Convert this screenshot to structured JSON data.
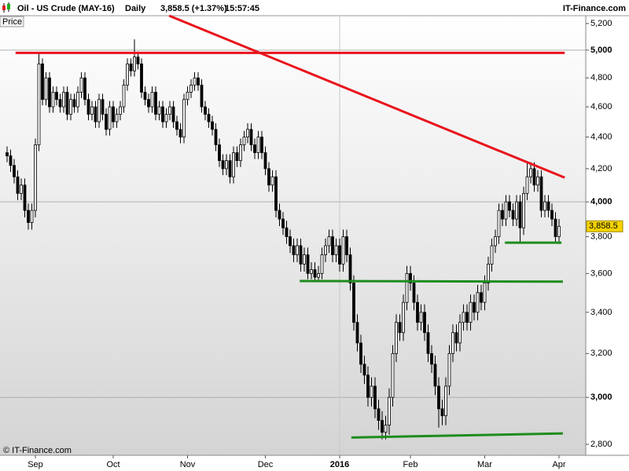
{
  "chart_data": {
    "type": "candlestick",
    "instrument": "Oil - US Crude (MAY-16)",
    "period": "Daily",
    "quote": "3,858.5 (+1.37%)",
    "time": "15:57:45",
    "source": "IT-Finance.com",
    "panel_label": "Price",
    "copyright": "© IT-Finance.com",
    "log_scale": true,
    "up_color": "#ffffff",
    "down_color": "#000000",
    "outline_color": "#000000",
    "categories": [
      null,
      null,
      null,
      null,
      null,
      null,
      null,
      null,
      "Sep",
      null,
      null,
      null,
      null,
      null,
      null,
      null,
      null,
      null,
      null,
      null,
      null,
      null,
      null,
      null,
      null,
      null,
      null,
      null,
      null,
      null,
      "Oct",
      null,
      null,
      null,
      null,
      null,
      null,
      null,
      null,
      null,
      null,
      null,
      null,
      null,
      null,
      null,
      null,
      null,
      null,
      null,
      null,
      "Nov",
      null,
      null,
      null,
      null,
      null,
      null,
      null,
      null,
      null,
      null,
      null,
      null,
      null,
      null,
      null,
      null,
      null,
      null,
      null,
      null,
      null,
      "Dec",
      null,
      null,
      null,
      null,
      null,
      null,
      null,
      null,
      null,
      null,
      null,
      null,
      null,
      null,
      null,
      null,
      null,
      null,
      null,
      null,
      "2016",
      null,
      null,
      null,
      null,
      null,
      null,
      null,
      null,
      null,
      null,
      null,
      null,
      null,
      null,
      null,
      null,
      null,
      null,
      null,
      "Feb",
      null,
      null,
      null,
      null,
      null,
      null,
      null,
      null,
      null,
      null,
      null,
      null,
      null,
      null,
      null,
      null,
      null,
      null,
      null,
      null,
      "Mar",
      null,
      null,
      null,
      null,
      null,
      null,
      null,
      null,
      null,
      null,
      null,
      null,
      null,
      null,
      null,
      null,
      null,
      null,
      null,
      null,
      "Apr"
    ],
    "open": [
      4300,
      4280,
      4220,
      4150,
      4050,
      4100,
      3950,
      3880,
      3950,
      4350,
      4900,
      4650,
      4800,
      4600,
      4700,
      4650,
      4600,
      4700,
      4550,
      4650,
      4600,
      4700,
      4800,
      4650,
      4550,
      4600,
      4500,
      4650,
      4550,
      4450,
      4600,
      4500,
      4550,
      4600,
      4750,
      4900,
      4850,
      4950,
      4900,
      4700,
      4650,
      4600,
      4700,
      4550,
      4600,
      4500,
      4550,
      4600,
      4500,
      4450,
      4400,
      4650,
      4700,
      4750,
      4800,
      4750,
      4600,
      4550,
      4500,
      4450,
      4350,
      4250,
      4200,
      4250,
      4150,
      4300,
      4250,
      4350,
      4400,
      4450,
      4350,
      4300,
      4400,
      4300,
      4200,
      4100,
      4150,
      3950,
      3900,
      3850,
      3800,
      3750,
      3700,
      3750,
      3650,
      3700,
      3600,
      3620,
      3580,
      3600,
      3700,
      3750,
      3800,
      3700,
      3750,
      3650,
      3800,
      3700,
      3550,
      3350,
      3250,
      3150,
      3100,
      3000,
      3050,
      2950,
      2900,
      2850,
      2880,
      3000,
      3200,
      3350,
      3300,
      3450,
      3600,
      3550,
      3450,
      3350,
      3400,
      3300,
      3200,
      3150,
      3050,
      2950,
      2920,
      3050,
      3200,
      3300,
      3250,
      3350,
      3400,
      3350,
      3450,
      3400,
      3500,
      3450,
      3550,
      3650,
      3750,
      3800,
      3950,
      3900,
      4000,
      3950,
      3900,
      4000,
      3850,
      4050,
      4150,
      4200,
      4100,
      4150,
      3950,
      4000,
      3950,
      3900,
      3800
    ],
    "high": [
      4340,
      4320,
      4260,
      4190,
      4140,
      4140,
      3990,
      3990,
      4390,
      4980,
      4940,
      4840,
      4840,
      4740,
      4740,
      4690,
      4740,
      4740,
      4690,
      4690,
      4740,
      4840,
      4840,
      4690,
      4640,
      4640,
      4690,
      4690,
      4590,
      4640,
      4640,
      4590,
      4640,
      4790,
      4940,
      4940,
      5080,
      4990,
      4940,
      4740,
      4690,
      4740,
      4740,
      4640,
      4640,
      4590,
      4640,
      4640,
      4540,
      4490,
      4690,
      4740,
      4790,
      4840,
      4840,
      4790,
      4640,
      4590,
      4540,
      4490,
      4390,
      4290,
      4290,
      4290,
      4340,
      4340,
      4390,
      4440,
      4490,
      4490,
      4390,
      4440,
      4440,
      4340,
      4240,
      4190,
      4190,
      3990,
      3940,
      3890,
      3840,
      3790,
      3790,
      3790,
      3740,
      3740,
      3660,
      3660,
      3640,
      3740,
      3790,
      3840,
      3840,
      3790,
      3790,
      3840,
      3840,
      3740,
      3590,
      3390,
      3290,
      3190,
      3140,
      3090,
      3090,
      2990,
      2940,
      2920,
      3040,
      3240,
      3390,
      3390,
      3490,
      3640,
      3640,
      3590,
      3490,
      3440,
      3440,
      3340,
      3240,
      3190,
      3090,
      2990,
      3090,
      3240,
      3340,
      3340,
      3390,
      3440,
      3440,
      3490,
      3490,
      3540,
      3540,
      3590,
      3690,
      3790,
      3840,
      3990,
      3990,
      4040,
      4040,
      3990,
      4040,
      4040,
      4090,
      4240,
      4240,
      4240,
      4190,
      4190,
      4040,
      4040,
      3990,
      3940,
      3900
    ],
    "low": [
      4240,
      4180,
      4110,
      4010,
      4010,
      3910,
      3840,
      3840,
      3910,
      4310,
      4610,
      4610,
      4560,
      4560,
      4610,
      4560,
      4560,
      4510,
      4510,
      4560,
      4560,
      4660,
      4610,
      4510,
      4510,
      4460,
      4460,
      4510,
      4410,
      4410,
      4460,
      4460,
      4510,
      4560,
      4710,
      4810,
      4810,
      4860,
      4660,
      4610,
      4560,
      4560,
      4510,
      4510,
      4460,
      4460,
      4510,
      4460,
      4410,
      4360,
      4360,
      4610,
      4660,
      4710,
      4710,
      4560,
      4510,
      4460,
      4410,
      4310,
      4210,
      4160,
      4160,
      4110,
      4110,
      4210,
      4210,
      4310,
      4360,
      4310,
      4260,
      4260,
      4260,
      4160,
      4060,
      4060,
      3910,
      3860,
      3810,
      3760,
      3710,
      3660,
      3660,
      3610,
      3610,
      3570,
      3570,
      3560,
      3560,
      3570,
      3660,
      3710,
      3660,
      3660,
      3610,
      3610,
      3660,
      3510,
      3310,
      3210,
      3110,
      3060,
      2960,
      2960,
      2910,
      2860,
      2820,
      2820,
      2840,
      2960,
      3160,
      3260,
      3260,
      3410,
      3510,
      3410,
      3310,
      3310,
      3260,
      3160,
      3110,
      3010,
      2870,
      2880,
      2880,
      3010,
      3160,
      3210,
      3210,
      3310,
      3310,
      3310,
      3360,
      3360,
      3410,
      3410,
      3510,
      3610,
      3710,
      3760,
      3860,
      3860,
      3910,
      3860,
      3860,
      3770,
      3810,
      4010,
      4110,
      4060,
      4060,
      3910,
      3910,
      3910,
      3860,
      3770,
      3760
    ],
    "close": [
      4280,
      4220,
      4150,
      4050,
      4100,
      3950,
      3880,
      3950,
      4350,
      4900,
      4650,
      4800,
      4600,
      4700,
      4650,
      4600,
      4700,
      4550,
      4650,
      4600,
      4700,
      4800,
      4650,
      4550,
      4600,
      4500,
      4650,
      4550,
      4450,
      4600,
      4500,
      4550,
      4600,
      4750,
      4900,
      4850,
      4950,
      4900,
      4700,
      4650,
      4600,
      4700,
      4550,
      4600,
      4500,
      4550,
      4600,
      4500,
      4450,
      4400,
      4650,
      4700,
      4750,
      4800,
      4750,
      4600,
      4550,
      4500,
      4450,
      4350,
      4250,
      4200,
      4250,
      4150,
      4300,
      4250,
      4350,
      4400,
      4450,
      4350,
      4300,
      4400,
      4300,
      4200,
      4100,
      4150,
      3950,
      3900,
      3850,
      3800,
      3750,
      3700,
      3750,
      3650,
      3700,
      3600,
      3620,
      3580,
      3600,
      3700,
      3750,
      3800,
      3700,
      3750,
      3650,
      3800,
      3700,
      3550,
      3350,
      3250,
      3150,
      3100,
      3000,
      3050,
      2950,
      2900,
      2850,
      2880,
      3000,
      3200,
      3350,
      3300,
      3450,
      3600,
      3550,
      3450,
      3350,
      3400,
      3300,
      3200,
      3150,
      3050,
      2950,
      2920,
      3050,
      3200,
      3300,
      3250,
      3350,
      3400,
      3350,
      3450,
      3400,
      3500,
      3450,
      3550,
      3650,
      3750,
      3800,
      3950,
      3900,
      4000,
      3950,
      3900,
      4000,
      3850,
      4050,
      4150,
      4200,
      4100,
      4150,
      3950,
      4000,
      3950,
      3900,
      3800,
      3858.5
    ],
    "ylim": [
      2755,
      5260
    ],
    "yticks": [
      {
        "value": 2800,
        "label": "2,800"
      },
      {
        "value": 3000,
        "label": "3,000"
      },
      {
        "value": 3200,
        "label": "3,200"
      },
      {
        "value": 3400,
        "label": "3,400"
      },
      {
        "value": 3600,
        "label": "3,600"
      },
      {
        "value": 3800,
        "label": "3,800"
      },
      {
        "value": 4000,
        "label": "4,000"
      },
      {
        "value": 4200,
        "label": "4,200"
      },
      {
        "value": 4400,
        "label": "4,400"
      },
      {
        "value": 4600,
        "label": "4,600"
      },
      {
        "value": 4800,
        "label": "4,800"
      },
      {
        "value": 5000,
        "label": "5,000"
      },
      {
        "value": 5200,
        "label": "5,200"
      }
    ],
    "major_yticks": [
      3000,
      4000,
      5000
    ],
    "year_break": 94,
    "last_price": {
      "value": 3858.5,
      "label": "3,858.5"
    },
    "last_price_color": "#f5d300",
    "lines": [
      {
        "color": "#e8141c",
        "x": [
          2.4,
          157.6
        ],
        "y": [
          4980,
          4980
        ]
      },
      {
        "color": "#e8141c",
        "x": [
          45.8,
          157.6
        ],
        "y": [
          5260,
          4145
        ]
      },
      {
        "color": "#1e8c1e",
        "x": [
          140.7,
          156.7
        ],
        "y": [
          3767,
          3767
        ]
      },
      {
        "color": "#1e8c1e",
        "x": [
          82.7,
          157.1
        ],
        "y": [
          3560,
          3557
        ]
      },
      {
        "color": "#1e8c1e",
        "x": [
          97.3,
          157.1
        ],
        "y": [
          2828,
          2845
        ]
      }
    ]
  }
}
